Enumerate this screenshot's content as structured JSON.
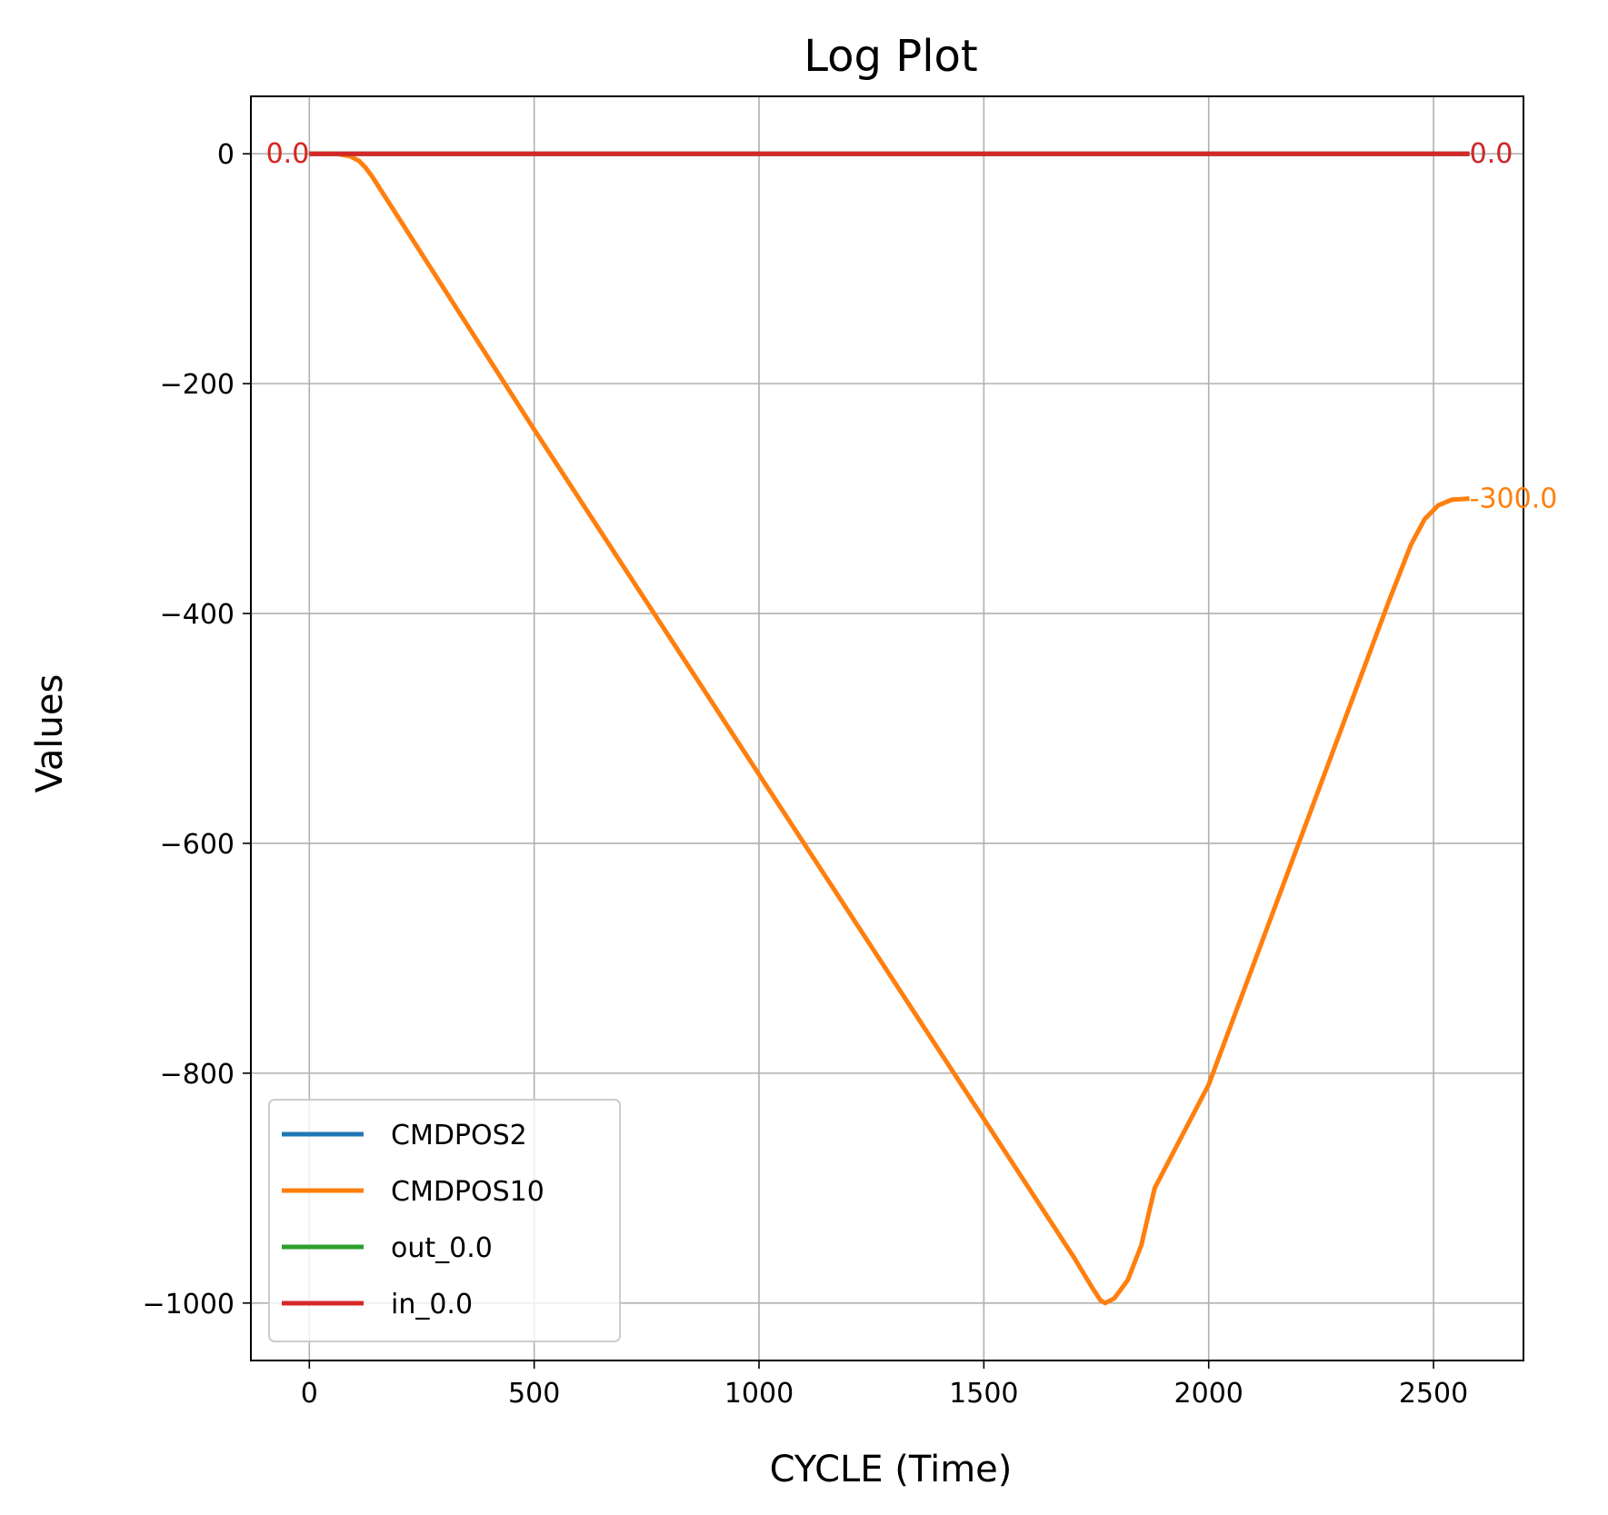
{
  "chart_data": {
    "type": "line",
    "title": "Log Plot",
    "xlabel": "CYCLE (Time)",
    "ylabel": "Values",
    "xlim": [
      -130,
      2700
    ],
    "ylim": [
      -1050,
      50
    ],
    "xticks": [
      0,
      500,
      1000,
      1500,
      2000,
      2500
    ],
    "xtick_labels": [
      "0",
      "500",
      "1000",
      "1500",
      "2000",
      "2500"
    ],
    "yticks": [
      0,
      -200,
      -400,
      -600,
      -800,
      -1000
    ],
    "ytick_labels": [
      "0",
      "−200",
      "−400",
      "−600",
      "−800",
      "−1000"
    ],
    "grid": true,
    "legend_position": "lower-left",
    "series": [
      {
        "name": "CMDPOS2",
        "color": "#1f77b4",
        "x": [
          0,
          2580
        ],
        "y": [
          0,
          0
        ]
      },
      {
        "name": "CMDPOS10",
        "color": "#ff7f0e",
        "x": [
          0,
          60,
          90,
          110,
          125,
          140,
          500,
          1000,
          1500,
          1700,
          1740,
          1760,
          1770,
          1790,
          1820,
          1850,
          1880,
          2000,
          2200,
          2400,
          2450,
          2480,
          2510,
          2540,
          2580
        ],
        "y": [
          0,
          0,
          -2,
          -6,
          -12,
          -20,
          -240,
          -540,
          -840,
          -960,
          -986,
          -998,
          -1000,
          -996,
          -980,
          -950,
          -900,
          -810,
          -600,
          -390,
          -340,
          -318,
          -306,
          -301,
          -300
        ]
      },
      {
        "name": "out_0.0",
        "color": "#2ca02c",
        "x": [
          0,
          2580
        ],
        "y": [
          0,
          0
        ]
      },
      {
        "name": "in_0.0",
        "color": "#d62728",
        "x": [
          0,
          2580
        ],
        "y": [
          0,
          0
        ]
      }
    ],
    "annotations": [
      {
        "text": "0.0",
        "x": 0,
        "y": 0,
        "anchor": "end",
        "color": "#ff7f0e"
      },
      {
        "text": "0.0",
        "x": 0,
        "y": 0,
        "anchor": "end",
        "color": "#d62728"
      },
      {
        "text": "0.0",
        "x": 2580,
        "y": 0,
        "anchor": "start",
        "color": "#1f77b4"
      },
      {
        "text": "0.0",
        "x": 2580,
        "y": 0,
        "anchor": "start",
        "color": "#d62728"
      },
      {
        "text": "-300.0",
        "x": 2580,
        "y": -300,
        "anchor": "start",
        "color": "#ff7f0e"
      }
    ]
  }
}
